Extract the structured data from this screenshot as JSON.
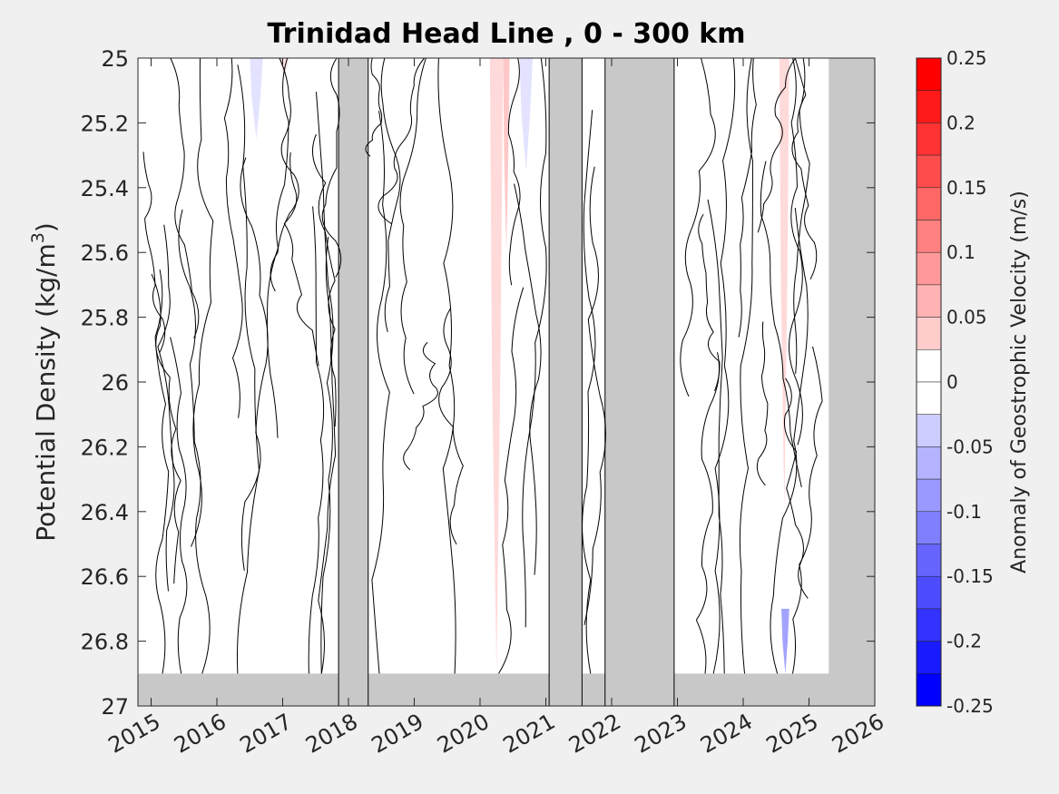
{
  "chart_data": {
    "type": "heatmap",
    "title": "Trinidad Head Line , 0 - 300 km",
    "ylabel_main": "Potential Density (kg/m",
    "ylabel_sup": "3",
    "ylabel_close": ")",
    "colorbar_label": "Anomaly of Geostrophic Velocity (m/s)",
    "xlim": [
      2014.8,
      2026.0
    ],
    "ylim": [
      25,
      27
    ],
    "y_reversed": true,
    "x_ticks": [
      2015,
      2016,
      2017,
      2018,
      2019,
      2020,
      2021,
      2022,
      2023,
      2024,
      2025,
      2026
    ],
    "x_tick_labels": [
      "2015",
      "2016",
      "2017",
      "2018",
      "2019",
      "2020",
      "2021",
      "2022",
      "2023",
      "2024",
      "2025",
      "2026"
    ],
    "y_ticks": [
      25,
      25.2,
      25.4,
      25.6,
      25.8,
      26,
      26.2,
      26.4,
      26.6,
      26.8,
      27
    ],
    "y_tick_labels": [
      "25",
      "25.2",
      "25.4",
      "25.6",
      "25.8",
      "26",
      "26.2",
      "26.4",
      "26.6",
      "26.8",
      "27"
    ],
    "colorbar_ticks": [
      0.25,
      0.2,
      0.15,
      0.1,
      0.05,
      0,
      -0.05,
      -0.1,
      -0.15,
      -0.2,
      -0.25
    ],
    "colorbar_tick_labels": [
      "0.25",
      "0.2",
      "0.15",
      "0.1",
      "0.05",
      "0",
      "-0.05",
      "-0.1",
      "-0.15",
      "-0.2",
      "-0.25"
    ],
    "clim": [
      -0.25,
      0.25
    ],
    "contour_interval": 0.025,
    "colors": {
      "positive_max": "#ff0000",
      "negative_max": "#0000ff",
      "missing_data": "#c8c8c8",
      "contour_line": "#000000"
    },
    "missing_data_periods": [
      [
        2017.85,
        2018.3
      ],
      [
        2021.05,
        2021.55
      ],
      [
        2021.9,
        2022.95
      ],
      [
        2025.3,
        2026.0
      ]
    ],
    "missing_below_density": 26.9,
    "anomaly_features": [
      {
        "x_start": 2016.5,
        "x_end": 2016.7,
        "density_top": 25.0,
        "density_bottom": 25.25,
        "value": -0.03
      },
      {
        "x_start": 2016.95,
        "x_end": 2017.1,
        "density_top": 25.0,
        "density_bottom": 25.05,
        "value": 0.03
      },
      {
        "x_start": 2020.15,
        "x_end": 2020.35,
        "density_top": 25.0,
        "density_bottom": 26.9,
        "value": 0.04
      },
      {
        "x_start": 2020.35,
        "x_end": 2020.45,
        "density_top": 25.0,
        "density_bottom": 25.6,
        "value": 0.06
      },
      {
        "x_start": 2020.6,
        "x_end": 2020.8,
        "density_top": 25.0,
        "density_bottom": 25.35,
        "value": -0.03
      },
      {
        "x_start": 2024.55,
        "x_end": 2024.7,
        "density_top": 25.0,
        "density_bottom": 26.4,
        "value": 0.04
      },
      {
        "x_start": 2024.58,
        "x_end": 2024.7,
        "density_top": 26.7,
        "density_bottom": 26.9,
        "value": -0.1
      }
    ]
  }
}
